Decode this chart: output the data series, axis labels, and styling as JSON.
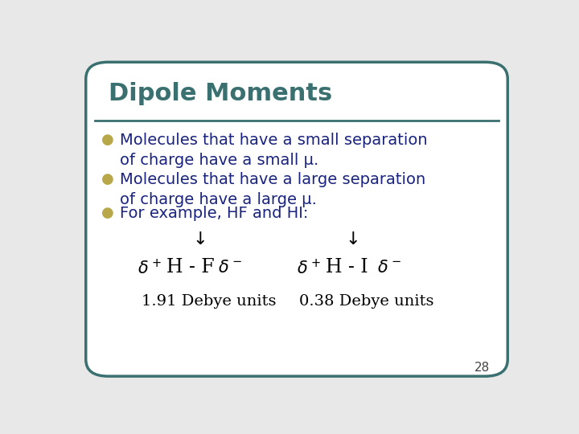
{
  "title": "Dipole Moments",
  "title_color": "#3B7070",
  "title_fontsize": 22,
  "bullet_color": "#B8A84A",
  "text_color": "#1A237E",
  "background_color": "#FFFFFF",
  "border_color": "#3B7070",
  "slide_bg": "#E8E8E8",
  "bullets": [
    "Molecules that have a small separation\nof charge have a small μ.",
    "Molecules that have a large separation\nof charge have a large μ.",
    "For example, HF and HI:"
  ],
  "bullet_fontsize": 14,
  "page_number": "28",
  "arrow_char": "⌞",
  "formula_color": "#000000",
  "units_color": "#000000"
}
